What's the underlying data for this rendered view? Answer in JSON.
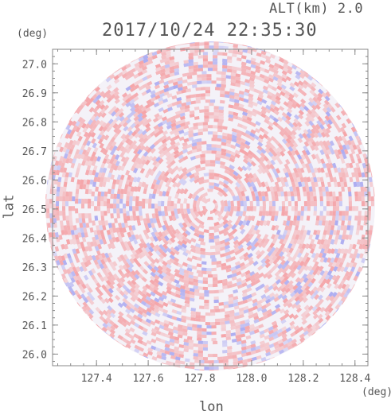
{
  "header": {
    "alt_label": "ALT(km) 2.0",
    "datetime": "2017/10/24 22:35:30"
  },
  "colors": {
    "positive": "#f4a0a4",
    "negative": "#a8a8f0",
    "frame": "#888888",
    "text": "#555555"
  },
  "chart_data": {
    "type": "heatmap",
    "title": "2017/10/24 22:35:30",
    "subtitle": "ALT(km) 2.0",
    "xlabel": "lon",
    "ylabel": "lat",
    "x_unit": "(deg)",
    "y_unit": "(deg)",
    "xlim": [
      127.23,
      128.45
    ],
    "ylim": [
      25.96,
      27.05
    ],
    "x_ticks": [
      127.4,
      127.6,
      127.8,
      128.0,
      128.2,
      128.4
    ],
    "x_tick_labels": [
      "127.4",
      "127.6",
      "127.8",
      "128.0",
      "128.2",
      "128.4"
    ],
    "y_ticks": [
      26.0,
      26.1,
      26.2,
      26.3,
      26.4,
      26.5,
      26.6,
      26.7,
      26.8,
      26.9,
      27.0
    ],
    "y_tick_labels": [
      "26.0",
      "26.1",
      "26.2",
      "26.3",
      "26.4",
      "26.5",
      "26.6",
      "26.7",
      "26.8",
      "26.9",
      "27.0"
    ],
    "center": [
      127.84,
      26.51
    ],
    "radius_deg": 0.6,
    "grid": false,
    "legend": "none"
  }
}
